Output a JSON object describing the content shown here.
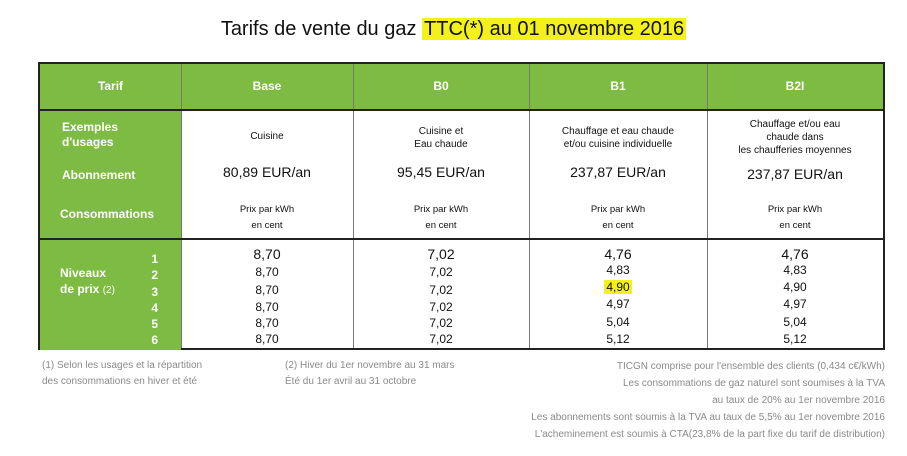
{
  "title": {
    "pre": "Tarifs de vente du gaz ",
    "highlight": "TTC(*) au 01 novembre 2016"
  },
  "header": {
    "tarif": "Tarif",
    "base": "Base",
    "b0": "B0",
    "b1": "B1",
    "b2i": "B2I"
  },
  "labels": {
    "exemples_line1": "Exemples",
    "exemples_line2": "d'usages",
    "abonnement": "Abonnement",
    "consommations": "Consommations",
    "niveaux_line1": "Niveaux",
    "niveaux_line2": "de prix",
    "niveaux_note": "(2)",
    "levels": [
      "1",
      "2",
      "3",
      "4",
      "5",
      "6"
    ]
  },
  "usages": {
    "base": [
      "Cuisine"
    ],
    "b0": [
      "Cuisine et",
      "Eau chaude"
    ],
    "b1": [
      "Chauffage et eau chaude",
      "et/ou cuisine individuelle"
    ],
    "b2i": [
      "Chauffage et/ou eau",
      "chaude dans",
      "les chaufferies moyennes"
    ]
  },
  "abonnement": {
    "base": "80,89 EUR/an",
    "b0": "95,45 EUR/an",
    "b1": "237,87 EUR/an",
    "b2i": "237,87 EUR/an"
  },
  "prix_label": {
    "line1": "Prix par kWh",
    "line2": "en cent"
  },
  "prices": {
    "base": [
      "8,70",
      "8,70",
      "8,70",
      "8,70",
      "8,70",
      "8,70"
    ],
    "b0": [
      "7,02",
      "7,02",
      "7,02",
      "7,02",
      "7,02",
      "7,02"
    ],
    "b1": [
      "4,76",
      "4,83",
      "4,90",
      "4,97",
      "5,04",
      "5,12"
    ],
    "b2i": [
      "4,76",
      "4,83",
      "4,90",
      "4,97",
      "5,04",
      "5,12"
    ]
  },
  "colors": {
    "header_green": "#7dbb42",
    "highlight": "#f4f01a",
    "note_gray": "#8a8a8a"
  },
  "notes": {
    "n1_line1": "(1) Selon les usages et la répartition",
    "n1_line2": "des consommations en hiver et été",
    "n2_line1": "(2) Hiver du 1er novembre au 31 mars",
    "n2_line2": "Été du 1er avril au 31 octobre",
    "right": [
      "TICGN comprise pour l'ensemble des clients (0,434 c€/kWh)",
      "Les consommations de gaz naturel sont soumises à la TVA",
      "au taux de 20% au 1er novembre 2016",
      "Les abonnements sont soumis à la TVA au taux de 5,5% au 1er novembre 2016",
      "L'acheminement est soumis à CTA(23,8% de la part fixe du tarif de distribution)"
    ]
  }
}
